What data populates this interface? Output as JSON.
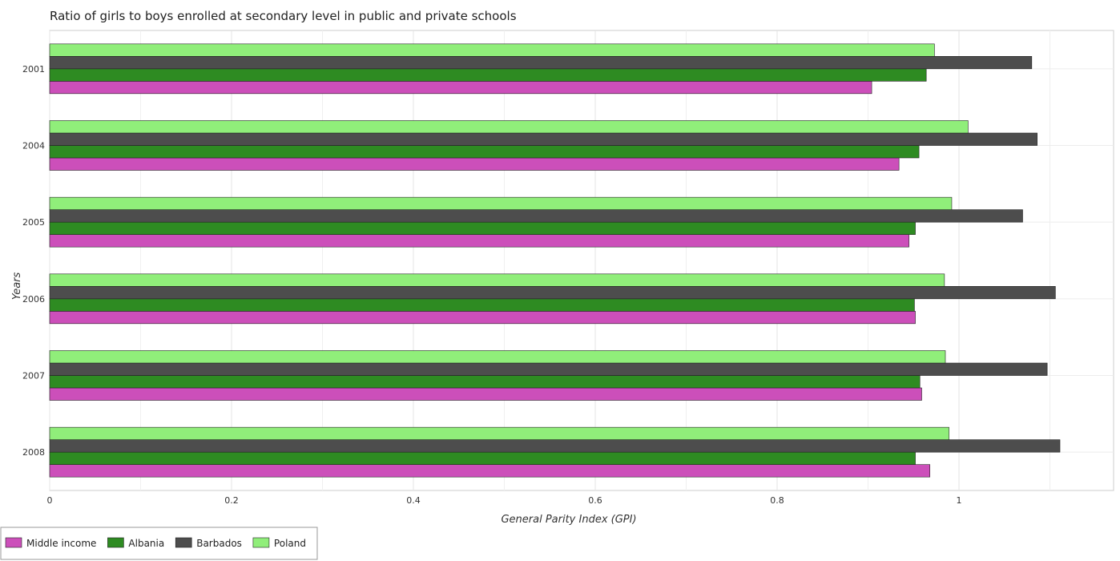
{
  "chart_data": {
    "type": "bar",
    "orientation": "horizontal",
    "title": "Ratio of girls to boys enrolled at secondary level in public and private schools",
    "xlabel": "General Parity Index (GPI)",
    "ylabel": "Years",
    "categories": [
      "2001",
      "2004",
      "2005",
      "2006",
      "2007",
      "2008"
    ],
    "xlim": [
      0,
      1.17
    ],
    "xticks": [
      "0",
      "0.2",
      "0.4",
      "0.6",
      "0.8",
      "1"
    ],
    "xtick_values": [
      0,
      0.2,
      0.4,
      0.6,
      0.8,
      1.0
    ],
    "grid": true,
    "legend_position": "bottom-left",
    "series": [
      {
        "name": "Middle income",
        "color": "#cc4fba",
        "values": [
          0.904,
          0.934,
          0.945,
          0.952,
          0.959,
          0.968
        ]
      },
      {
        "name": "Albania",
        "color": "#2e8b22",
        "values": [
          0.964,
          0.956,
          0.952,
          0.951,
          0.957,
          0.952
        ]
      },
      {
        "name": "Barbados",
        "color": "#4d4d4d",
        "values": [
          1.08,
          1.086,
          1.07,
          1.106,
          1.097,
          1.111
        ]
      },
      {
        "name": "Poland",
        "color": "#90ee7a",
        "values": [
          0.973,
          1.01,
          0.992,
          0.984,
          0.985,
          0.989
        ]
      }
    ]
  }
}
